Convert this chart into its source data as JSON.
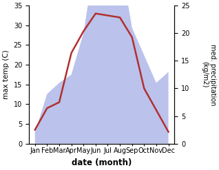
{
  "months": [
    "Jan",
    "Feb",
    "Mar",
    "Apr",
    "May",
    "Jun",
    "Jul",
    "Aug",
    "Sep",
    "Oct",
    "Nov",
    "Dec"
  ],
  "month_indices": [
    1,
    2,
    3,
    4,
    5,
    6,
    7,
    8,
    9,
    10,
    11,
    12
  ],
  "temperature": [
    3.5,
    9.0,
    10.5,
    23.0,
    28.5,
    33.0,
    32.5,
    32.0,
    27.0,
    14.0,
    8.5,
    3.0
  ],
  "precipitation": [
    2.0,
    9.0,
    11.0,
    12.5,
    20.0,
    34.0,
    27.0,
    34.0,
    21.0,
    16.0,
    11.0,
    13.0
  ],
  "temp_color": "#b03030",
  "precip_color": "#b0b8e8",
  "temp_ylim": [
    0,
    35
  ],
  "precip_ylim": [
    0,
    25
  ],
  "ylabel_left": "max temp (C)",
  "ylabel_right": "med. precipitation\n(kg/m2)",
  "xlabel": "date (month)",
  "bg_color": "#ffffff",
  "temp_yticks": [
    0,
    5,
    10,
    15,
    20,
    25,
    30,
    35
  ],
  "precip_yticks": [
    0,
    5,
    10,
    15,
    20,
    25
  ]
}
